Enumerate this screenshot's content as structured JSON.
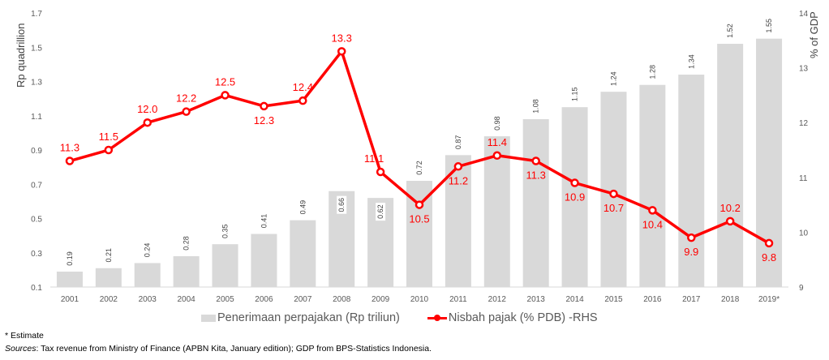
{
  "chart_data": {
    "type": "bar+line",
    "categories": [
      "2001",
      "2002",
      "2003",
      "2004",
      "2005",
      "2006",
      "2007",
      "2008",
      "2009",
      "2010",
      "2011",
      "2012",
      "2013",
      "2014",
      "2015",
      "2016",
      "2017",
      "2018",
      "2019*"
    ],
    "series": [
      {
        "name": "Penerimaan perpajakan (Rp triliun)",
        "type": "bar",
        "axis": "left",
        "color": "#d9d9d9",
        "values": [
          0.19,
          0.21,
          0.24,
          0.28,
          0.35,
          0.41,
          0.49,
          0.66,
          0.62,
          0.72,
          0.87,
          0.98,
          1.08,
          1.15,
          1.24,
          1.28,
          1.34,
          1.52,
          1.55
        ],
        "labels": [
          "0.19",
          "0.21",
          "0.24",
          "0.28",
          "0.35",
          "0.41",
          "0.49",
          "0.66",
          "0.62",
          "0.72",
          "0.87",
          "0.98",
          "1.08",
          "1.15",
          "1.24",
          "1.28",
          "1.34",
          "1.52",
          "1.55"
        ]
      },
      {
        "name": "Nisbah pajak (% PDB) -RHS",
        "type": "line",
        "axis": "right",
        "color": "#ff0000",
        "values": [
          11.3,
          11.5,
          12.0,
          12.2,
          12.5,
          12.3,
          12.4,
          13.3,
          11.1,
          10.5,
          11.2,
          11.4,
          11.3,
          10.9,
          10.7,
          10.4,
          9.9,
          10.2,
          9.8
        ],
        "labels": [
          "11.3",
          "11.5",
          "12.0",
          "12.2",
          "12.5",
          "12.3",
          "12.4",
          "13.3",
          "11.1",
          "10.5",
          "11.2",
          "11.4",
          "11.3",
          "10.9",
          "10.7",
          "10.4",
          "9.9",
          "10.2",
          "9.8"
        ]
      }
    ],
    "ylabel": "Rp quadrillion",
    "ylim": [
      0.1,
      1.7
    ],
    "yticks": [
      "0.1",
      "0.3",
      "0.5",
      "0.7",
      "0.9",
      "1.1",
      "1.3",
      "1.5",
      "1.7"
    ],
    "y2label": "% of GDP",
    "y2lim": [
      9,
      14
    ],
    "y2ticks": [
      "9",
      "10",
      "11",
      "12",
      "13",
      "14"
    ],
    "grid": false,
    "legend_placement": "bottom"
  },
  "footnotes": {
    "estimate": "* Estimate",
    "sources_label": "Sources",
    "sources_text": ": Tax revenue from Ministry of Finance (APBN Kita, January edition); GDP from BPS-Statistics Indonesia."
  }
}
